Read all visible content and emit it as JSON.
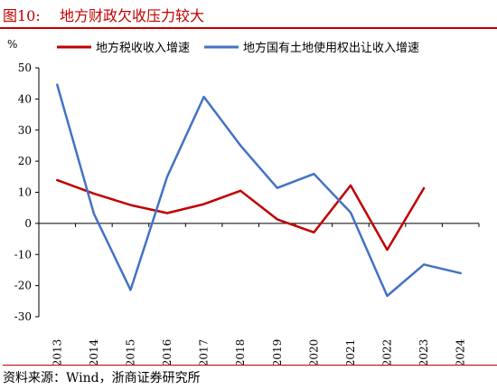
{
  "figure": {
    "number_label": "图10:",
    "title": "地方财政欠收压力较大",
    "source": "资料来源：Wind，浙商证券研究所"
  },
  "chart_data": {
    "type": "line",
    "ylabel": "%",
    "ylim": [
      -30,
      50
    ],
    "yticks": [
      50,
      40,
      30,
      20,
      10,
      0,
      -10,
      -20,
      -30
    ],
    "categories": [
      "2013",
      "2014",
      "2015",
      "2016",
      "2017",
      "2018",
      "2019",
      "2020",
      "2021",
      "2022",
      "2023",
      "2024"
    ],
    "legend_position": "top",
    "series": [
      {
        "name": "地方税收收入增速",
        "color": "#c00000",
        "values": [
          13.9,
          9.6,
          5.9,
          3.3,
          6.2,
          10.5,
          1.3,
          -2.9,
          12.2,
          -8.5,
          11.3,
          null
        ]
      },
      {
        "name": "地方国有土地使用权出让收入增速",
        "color": "#4472c4",
        "values": [
          44.6,
          3.1,
          -21.4,
          15.0,
          40.7,
          25.0,
          11.4,
          15.9,
          3.5,
          -23.3,
          -13.2,
          -16.0
        ]
      }
    ]
  }
}
